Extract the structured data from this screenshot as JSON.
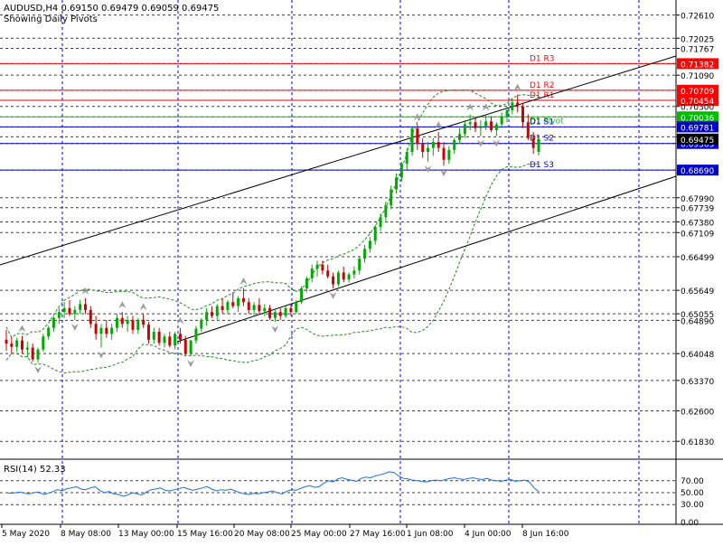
{
  "header": {
    "symbol_line": "AUDUSD,H4  0.69150 0.69479 0.69059 0.69475",
    "subtitle": "Showing Daily Pivots"
  },
  "rsi_label": "RSI(14) 52.33",
  "colors": {
    "grid": "#0000cc",
    "bull": "#00aa00",
    "bear": "#cc0000",
    "pivot_red": "#ff0000",
    "pivot_green": "#00cc00",
    "pivot_blue": "#0000cc",
    "band": "#228822",
    "rsi": "#1e6fd9",
    "highlight_bg": "#ff0000",
    "highlight_green_bg": "#00bb00",
    "highlight_blue_bg": "#0000cc"
  },
  "chart_data": {
    "type": "candlestick",
    "instrument": "AUDUSD",
    "timeframe": "H4",
    "ohlc_header": {
      "open": 0.6915,
      "high": 0.69479,
      "low": 0.69059,
      "close": 0.69475
    },
    "ylim": [
      0.614,
      0.729
    ],
    "y_ticks": [
      "0.72610",
      "0.72025",
      "0.71767",
      "0.71382",
      "0.71090",
      "0.70709",
      "0.70454",
      "0.70300",
      "0.70036",
      "0.69781",
      "0.69530",
      "0.69363",
      "0.68690",
      "0.67990",
      "0.67739",
      "0.67380",
      "0.67109",
      "0.66499",
      "0.65649",
      "0.65055",
      "0.64890",
      "0.64048",
      "0.63370",
      "0.62600",
      "0.61830"
    ],
    "x_labels": [
      "5 May 2020",
      "8 May 08:00",
      "13 May 00:00",
      "15 May 16:00",
      "20 May 08:00",
      "25 May 00:00",
      "27 May 16:00",
      "1 Jun 08:00",
      "4 Jun 00:00",
      "8 Jun 16:00"
    ],
    "pivot_lines": [
      {
        "label": "D1  R3",
        "value": 0.71382,
        "value_label": "0.71382",
        "color": "red"
      },
      {
        "label": "D1  R2",
        "value": 0.70709,
        "value_label": "0.70709",
        "color": "red"
      },
      {
        "label": "D1  R1",
        "value": 0.70454,
        "value_label": "0.70454",
        "color": "red"
      },
      {
        "label": "D1  Pivot",
        "value": 0.70036,
        "value_label": "0.70036",
        "color": "green"
      },
      {
        "label": "D1  S1",
        "value": 0.69781,
        "value_label": "0.69781",
        "color": "blue"
      },
      {
        "label": "D1  S2",
        "value": 0.69363,
        "value_label": "0.69363",
        "color": "blue"
      },
      {
        "label": "D1  S3",
        "value": 0.6869,
        "value_label": "0.68690",
        "color": "blue"
      }
    ],
    "price_line": {
      "value": 0.69475,
      "value_label": "0.69475"
    },
    "rsi": {
      "period": 14,
      "last": 52.33,
      "levels": [
        "70.00",
        "50.00",
        "30.00",
        "0.00"
      ],
      "ylim": [
        0,
        100
      ],
      "values": [
        50,
        49,
        50,
        51,
        49,
        48,
        50,
        51,
        47,
        49,
        52,
        55,
        53,
        57,
        58,
        60,
        56,
        55,
        58,
        60,
        54,
        50,
        52,
        48,
        47,
        44,
        46,
        50,
        48,
        46,
        51,
        55,
        56,
        58,
        54,
        53,
        55,
        57,
        59,
        56,
        54,
        56,
        58,
        60,
        56,
        53,
        55,
        54,
        56,
        53,
        50,
        48,
        47,
        49,
        48,
        50,
        51,
        53,
        50,
        48,
        52,
        55,
        54,
        57,
        60,
        62,
        59,
        60,
        66,
        70,
        68,
        73,
        75,
        72,
        71,
        69,
        74,
        76,
        75,
        78,
        80,
        82,
        85,
        84,
        78,
        74,
        73,
        71,
        70,
        69,
        68,
        70,
        71,
        70,
        72,
        74,
        75,
        73,
        72,
        74,
        75,
        73,
        72,
        74,
        71,
        70,
        69,
        71,
        72,
        69,
        70,
        71,
        68,
        58,
        52
      ]
    },
    "candles": [
      [
        0.644,
        0.6465,
        0.6412,
        0.643
      ],
      [
        0.643,
        0.6448,
        0.6405,
        0.6422
      ],
      [
        0.6422,
        0.6445,
        0.641,
        0.6438
      ],
      [
        0.6438,
        0.645,
        0.6405,
        0.6415
      ],
      [
        0.6415,
        0.6435,
        0.6395,
        0.642
      ],
      [
        0.642,
        0.643,
        0.6385,
        0.639
      ],
      [
        0.639,
        0.642,
        0.6382,
        0.6415
      ],
      [
        0.6415,
        0.6455,
        0.641,
        0.6448
      ],
      [
        0.6448,
        0.6475,
        0.644,
        0.647
      ],
      [
        0.647,
        0.65,
        0.646,
        0.6495
      ],
      [
        0.6495,
        0.652,
        0.648,
        0.651
      ],
      [
        0.651,
        0.6535,
        0.6495,
        0.652
      ],
      [
        0.652,
        0.654,
        0.65,
        0.6505
      ],
      [
        0.6505,
        0.6525,
        0.649,
        0.6515
      ],
      [
        0.6515,
        0.654,
        0.6505,
        0.653
      ],
      [
        0.653,
        0.6545,
        0.6505,
        0.6515
      ],
      [
        0.6515,
        0.6525,
        0.647,
        0.648
      ],
      [
        0.648,
        0.65,
        0.644,
        0.6455
      ],
      [
        0.6455,
        0.648,
        0.642,
        0.647
      ],
      [
        0.647,
        0.649,
        0.6445,
        0.6455
      ],
      [
        0.6455,
        0.648,
        0.644,
        0.647
      ],
      [
        0.647,
        0.6505,
        0.646,
        0.6495
      ],
      [
        0.6495,
        0.651,
        0.647,
        0.648
      ],
      [
        0.648,
        0.65,
        0.646,
        0.649
      ],
      [
        0.649,
        0.65,
        0.6455,
        0.6465
      ],
      [
        0.6465,
        0.6495,
        0.6455,
        0.649
      ],
      [
        0.649,
        0.6505,
        0.647,
        0.6478
      ],
      [
        0.6478,
        0.6485,
        0.643,
        0.644
      ],
      [
        0.644,
        0.647,
        0.643,
        0.646
      ],
      [
        0.646,
        0.647,
        0.6425,
        0.6432
      ],
      [
        0.6432,
        0.6455,
        0.642,
        0.6448
      ],
      [
        0.6448,
        0.646,
        0.642,
        0.6425
      ],
      [
        0.6425,
        0.646,
        0.6415,
        0.6455
      ],
      [
        0.6455,
        0.647,
        0.643,
        0.644
      ],
      [
        0.644,
        0.645,
        0.64,
        0.6405
      ],
      [
        0.6405,
        0.644,
        0.6398,
        0.6438
      ],
      [
        0.6438,
        0.6475,
        0.643,
        0.6468
      ],
      [
        0.6468,
        0.6495,
        0.646,
        0.649
      ],
      [
        0.649,
        0.652,
        0.6475,
        0.651
      ],
      [
        0.651,
        0.6525,
        0.6495,
        0.65
      ],
      [
        0.65,
        0.653,
        0.649,
        0.6525
      ],
      [
        0.6525,
        0.6545,
        0.6505,
        0.6515
      ],
      [
        0.6515,
        0.654,
        0.6505,
        0.6535
      ],
      [
        0.6535,
        0.656,
        0.652,
        0.6525
      ],
      [
        0.6525,
        0.655,
        0.651,
        0.6545
      ],
      [
        0.6545,
        0.657,
        0.6525,
        0.6535
      ],
      [
        0.6535,
        0.6545,
        0.6505,
        0.6515
      ],
      [
        0.6515,
        0.6535,
        0.65,
        0.6528
      ],
      [
        0.6528,
        0.6545,
        0.6505,
        0.6512
      ],
      [
        0.6512,
        0.653,
        0.65,
        0.652
      ],
      [
        0.652,
        0.6528,
        0.649,
        0.6495
      ],
      [
        0.6495,
        0.6515,
        0.6485,
        0.651
      ],
      [
        0.651,
        0.652,
        0.649,
        0.65
      ],
      [
        0.65,
        0.6525,
        0.6495,
        0.652
      ],
      [
        0.652,
        0.653,
        0.65,
        0.651
      ],
      [
        0.651,
        0.654,
        0.6505,
        0.6535
      ],
      [
        0.6535,
        0.6575,
        0.653,
        0.657
      ],
      [
        0.657,
        0.66,
        0.656,
        0.6595
      ],
      [
        0.6595,
        0.663,
        0.6585,
        0.662
      ],
      [
        0.662,
        0.664,
        0.66,
        0.663
      ],
      [
        0.663,
        0.664,
        0.6605,
        0.6615
      ],
      [
        0.6615,
        0.663,
        0.6595,
        0.66
      ],
      [
        0.66,
        0.661,
        0.657,
        0.658
      ],
      [
        0.658,
        0.6615,
        0.6575,
        0.661
      ],
      [
        0.661,
        0.6625,
        0.6585,
        0.6592
      ],
      [
        0.6592,
        0.661,
        0.6585,
        0.6605
      ],
      [
        0.6605,
        0.6625,
        0.6595,
        0.6615
      ],
      [
        0.6615,
        0.665,
        0.6605,
        0.6645
      ],
      [
        0.6645,
        0.668,
        0.6635,
        0.667
      ],
      [
        0.667,
        0.67,
        0.666,
        0.669
      ],
      [
        0.669,
        0.673,
        0.668,
        0.6725
      ],
      [
        0.6725,
        0.676,
        0.6715,
        0.675
      ],
      [
        0.675,
        0.679,
        0.674,
        0.678
      ],
      [
        0.678,
        0.683,
        0.677,
        0.682
      ],
      [
        0.682,
        0.686,
        0.681,
        0.685
      ],
      [
        0.685,
        0.689,
        0.684,
        0.6885
      ],
      [
        0.6885,
        0.6925,
        0.687,
        0.6915
      ],
      [
        0.6915,
        0.698,
        0.6905,
        0.6975
      ],
      [
        0.6975,
        0.6985,
        0.692,
        0.6935
      ],
      [
        0.6935,
        0.695,
        0.69,
        0.6915
      ],
      [
        0.6915,
        0.694,
        0.689,
        0.6925
      ],
      [
        0.6925,
        0.695,
        0.6905,
        0.694
      ],
      [
        0.694,
        0.6965,
        0.6915,
        0.6925
      ],
      [
        0.6925,
        0.694,
        0.688,
        0.6895
      ],
      [
        0.6895,
        0.693,
        0.6885,
        0.692
      ],
      [
        0.692,
        0.695,
        0.691,
        0.6945
      ],
      [
        0.6945,
        0.6975,
        0.6935,
        0.696
      ],
      [
        0.696,
        0.6995,
        0.695,
        0.6985
      ],
      [
        0.6985,
        0.701,
        0.697,
        0.699
      ],
      [
        0.699,
        0.7,
        0.6965,
        0.6975
      ],
      [
        0.6975,
        0.6995,
        0.6955,
        0.698
      ],
      [
        0.698,
        0.701,
        0.697,
        0.6992
      ],
      [
        0.6992,
        0.7005,
        0.6965,
        0.697
      ],
      [
        0.697,
        0.699,
        0.6955,
        0.6985
      ],
      [
        0.6985,
        0.7015,
        0.6975,
        0.7005
      ],
      [
        0.7005,
        0.703,
        0.699,
        0.702
      ],
      [
        0.702,
        0.705,
        0.701,
        0.704
      ],
      [
        0.704,
        0.706,
        0.7015,
        0.703
      ],
      [
        0.703,
        0.704,
        0.6975,
        0.699
      ],
      [
        0.699,
        0.701,
        0.6945,
        0.695
      ],
      [
        0.695,
        0.6965,
        0.691,
        0.6925
      ],
      [
        0.6915,
        0.6948,
        0.6906,
        0.6948
      ]
    ]
  }
}
